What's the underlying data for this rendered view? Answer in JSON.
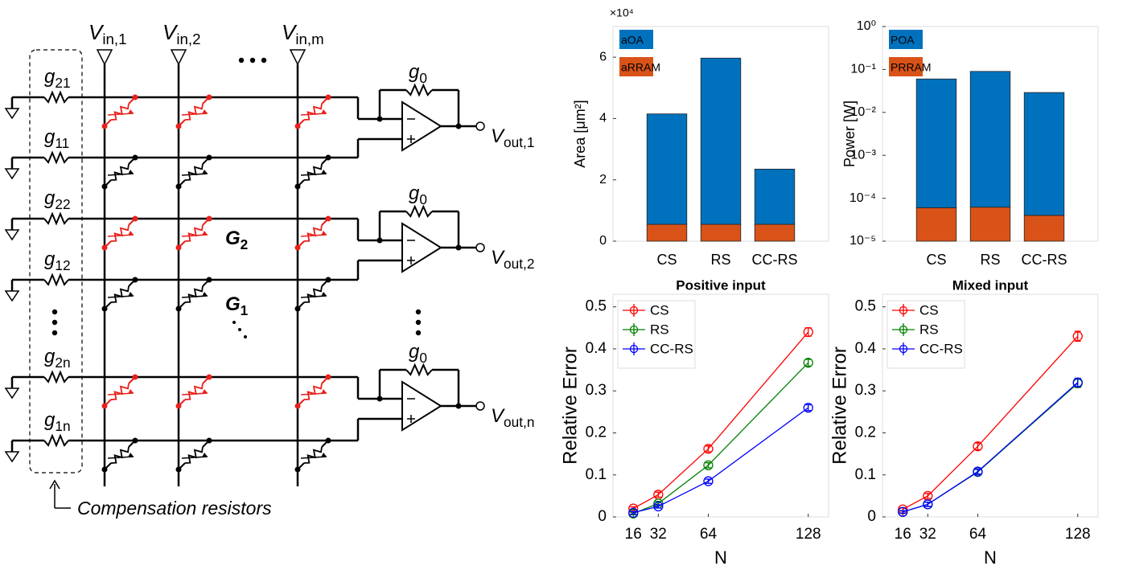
{
  "diagram": {
    "inputs": [
      {
        "main": "V",
        "sub": "in,1"
      },
      {
        "main": "V",
        "sub": "in,2"
      },
      {
        "main": "V",
        "sub": "in,m"
      }
    ],
    "feedback": [
      {
        "main": "g",
        "sub": "0"
      },
      {
        "main": "g",
        "sub": "0"
      },
      {
        "main": "g",
        "sub": "0"
      }
    ],
    "outputs": [
      {
        "main": "V",
        "sub": "out,1"
      },
      {
        "main": "V",
        "sub": "out,2"
      },
      {
        "main": "V",
        "sub": "out,n"
      }
    ],
    "resistors": [
      {
        "main": "g",
        "sub": "21"
      },
      {
        "main": "g",
        "sub": "11"
      },
      {
        "main": "g",
        "sub": "22"
      },
      {
        "main": "g",
        "sub": "12"
      },
      {
        "main": "g",
        "sub": "2n"
      },
      {
        "main": "g",
        "sub": "1n"
      }
    ],
    "g2": {
      "main": "G",
      "sub": "2"
    },
    "g1": {
      "main": "G",
      "sub": "1"
    },
    "caption": "Compensation resistors"
  },
  "chart_data": [
    {
      "type": "stacked_bar",
      "ylabel": "Area [μm²]",
      "ylabel_multiplier": "×10⁴",
      "categories": [
        "CS",
        "RS",
        "CC-RS"
      ],
      "series": [
        {
          "name": "aOA",
          "color": "#0072BD",
          "values": [
            3.6,
            5.42,
            1.8
          ]
        },
        {
          "name": "aRRAM",
          "color": "#D95319",
          "values": [
            0.55,
            0.55,
            0.55
          ]
        }
      ],
      "ylim": [
        0,
        7
      ],
      "yticks": [
        0,
        2,
        4,
        6
      ],
      "legend": "upper left"
    },
    {
      "type": "stacked_bar",
      "ylabel": "Power [W]",
      "yscale": "log",
      "categories": [
        "CS",
        "RS",
        "CC-RS"
      ],
      "series": [
        {
          "name": "POA",
          "color": "#0072BD",
          "values": [
            0.06,
            0.09,
            0.029
          ]
        },
        {
          "name": "PRRAM",
          "color": "#D95319",
          "values": [
            6e-05,
            6.2e-05,
            4e-05
          ]
        }
      ],
      "ylim": [
        1e-05,
        1
      ],
      "yticks": [
        {
          "value": 1e-05,
          "label": "10⁻⁵"
        },
        {
          "value": 0.0001,
          "label": "10⁻⁴"
        },
        {
          "value": 0.001,
          "label": "10⁻³"
        },
        {
          "value": 0.01,
          "label": "10⁻²"
        },
        {
          "value": 0.1,
          "label": "10⁻¹"
        },
        {
          "value": 1,
          "label": "10⁰"
        }
      ],
      "legend": "upper left"
    },
    {
      "type": "line",
      "title": "Positive input",
      "xlabel": "N",
      "ylabel": "Relative Error",
      "x": [
        16,
        32,
        64,
        128
      ],
      "xlim": [
        3,
        141
      ],
      "xticks": [
        16,
        32,
        64,
        128
      ],
      "ylim": [
        0,
        0.53
      ],
      "yticks": [
        0,
        0.1,
        0.2,
        0.3,
        0.4,
        0.5
      ],
      "series": [
        {
          "name": "CS",
          "color": "#ff0000",
          "values": [
            0.02,
            0.053,
            0.162,
            0.44
          ],
          "errors": [
            0.004,
            0.006,
            0.007,
            0.01
          ]
        },
        {
          "name": "RS",
          "color": "#008000",
          "values": [
            0.008,
            0.032,
            0.123,
            0.367
          ],
          "errors": [
            0.003,
            0.005,
            0.006,
            0.008
          ]
        },
        {
          "name": "CC-RS",
          "color": "#0000ff",
          "values": [
            0.01,
            0.025,
            0.085,
            0.26
          ],
          "errors": [
            0.003,
            0.004,
            0.005,
            0.007
          ]
        }
      ],
      "legend": "upper left"
    },
    {
      "type": "line",
      "title": "Mixed input",
      "xlabel": "N",
      "ylabel": "Relative Error",
      "x": [
        16,
        32,
        64,
        128
      ],
      "xlim": [
        3,
        141
      ],
      "xticks": [
        16,
        32,
        64,
        128
      ],
      "ylim": [
        0,
        0.53
      ],
      "yticks": [
        0,
        0.1,
        0.2,
        0.3,
        0.4,
        0.5
      ],
      "series": [
        {
          "name": "CS",
          "color": "#ff0000",
          "values": [
            0.018,
            0.05,
            0.168,
            0.43
          ],
          "errors": [
            0.004,
            0.006,
            0.008,
            0.012
          ]
        },
        {
          "name": "RS",
          "color": "#008000",
          "values": [
            0.012,
            0.03,
            0.107,
            0.318
          ],
          "errors": [
            0.003,
            0.005,
            0.006,
            0.01
          ]
        },
        {
          "name": "CC-RS",
          "color": "#0000ff",
          "values": [
            0.012,
            0.03,
            0.108,
            0.32
          ],
          "errors": [
            0.003,
            0.005,
            0.006,
            0.01
          ]
        }
      ],
      "legend": "upper left"
    }
  ]
}
